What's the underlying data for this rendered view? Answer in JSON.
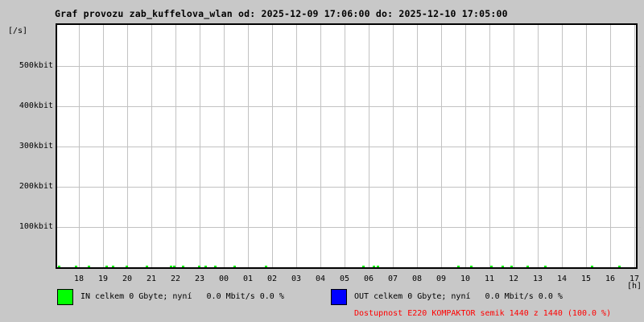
{
  "title": "Graf provozu zab_kuffelova_wlan od: 2025-12-09 17:06:00 do: 2025-12-10 17:05:00",
  "chart_data": {
    "type": "line",
    "title": "Graf provozu zab_kuffelova_wlan od: 2025-12-09 17:06:00 do: 2025-12-10 17:05:00",
    "time_from": "2025-12-09 17:06:00",
    "time_to": "2025-12-10 17:05:00",
    "ylabel": "[/s]",
    "xlabel": "[h]",
    "x_tick_labels": [
      "18",
      "19",
      "20",
      "21",
      "22",
      "23",
      "00",
      "01",
      "02",
      "03",
      "04",
      "05",
      "06",
      "07",
      "08",
      "09",
      "10",
      "11",
      "12",
      "13",
      "14",
      "15",
      "16",
      "17"
    ],
    "y_tick_labels": [
      "100kbit",
      "200kbit",
      "300kbit",
      "400kbit",
      "500kbit"
    ],
    "y_tick_values": [
      100,
      200,
      300,
      400,
      500
    ],
    "ylim": [
      0,
      602
    ],
    "y_unit": "kbit/s",
    "grid": true,
    "legend_position": "bottom",
    "series": [
      {
        "name": "IN",
        "color": "#00ff00",
        "description": "traffic essentially 0 for whole period; tiny spikes (~2 kbit/s) at scattered times",
        "spike_x_fractions": [
          0.001,
          0.031,
          0.053,
          0.083,
          0.095,
          0.118,
          0.153,
          0.195,
          0.2,
          0.216,
          0.243,
          0.255,
          0.271,
          0.305,
          0.359,
          0.527,
          0.545,
          0.552,
          0.691,
          0.714,
          0.748,
          0.768,
          0.783,
          0.811,
          0.841,
          0.922,
          0.969
        ],
        "spike_value_kbit": 2
      },
      {
        "name": "OUT",
        "color": "#0000ff",
        "description": "flat 0 for whole period",
        "spike_x_fractions": [],
        "spike_value_kbit": 0
      }
    ]
  },
  "legend": {
    "in": {
      "color": "#00ff00",
      "label": "IN celkem 0 Gbyte; nyní   0.0 Mbit/s 0.0 %"
    },
    "out": {
      "color": "#0000ff",
      "label": "OUT celkem 0 Gbyte; nyní   0.0 Mbit/s 0.0 %"
    }
  },
  "availability": {
    "text": "Dostupnost E220 KOMPAKTOR semik 1440 z 1440 (100.0 %)",
    "color": "#ff0000"
  },
  "colors": {
    "background": "#c8c8c8",
    "plot_background": "#ffffff",
    "grid": "#c2c2c2",
    "frame": "#000000"
  }
}
